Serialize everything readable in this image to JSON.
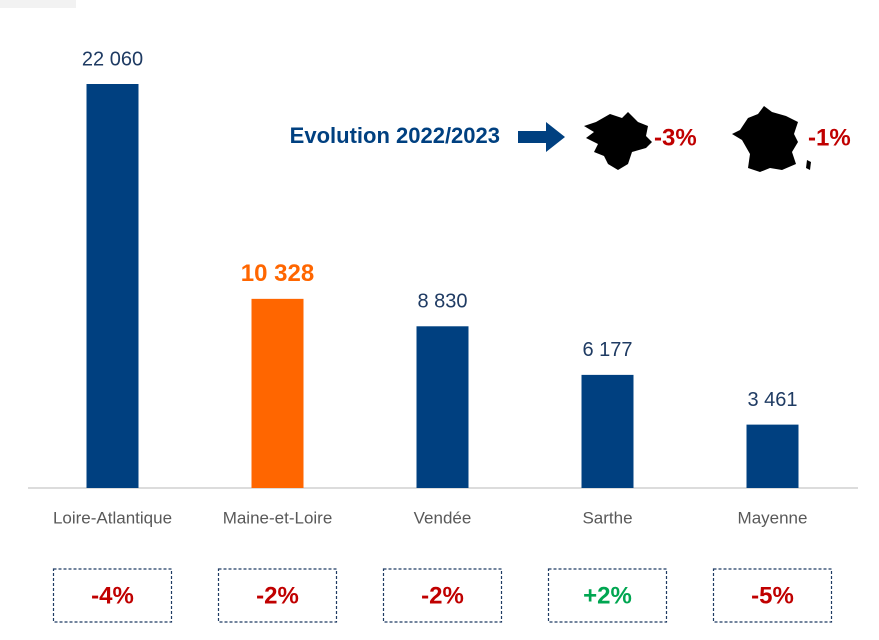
{
  "chart_data": {
    "type": "bar",
    "categories": [
      "Loire-Atlantique",
      "Maine-et-Loire",
      "Vendée",
      "Sarthe",
      "Mayenne"
    ],
    "values": [
      22060,
      10328,
      8830,
      6177,
      3461
    ],
    "value_labels": [
      "22 060",
      "10 328",
      "8 830",
      "6 177",
      "3 461"
    ],
    "color": "#004080",
    "colors": [
      "#004080",
      "#ff6600",
      "#004080",
      "#004080",
      "#004080"
    ],
    "changes": [
      -4,
      -2,
      -2,
      2,
      -5
    ],
    "change_labels": [
      "-4%",
      "-2%",
      "-2%",
      "+2%",
      "-5%"
    ],
    "change_colors": [
      "#c00000",
      "#c00000",
      "#c00000",
      "#00a651",
      "#c00000"
    ],
    "annotation": "Evolution 2022/2023",
    "region_change": -3,
    "region_change_label": "-3%",
    "france_change": -1,
    "france_change_label": "-1%"
  }
}
